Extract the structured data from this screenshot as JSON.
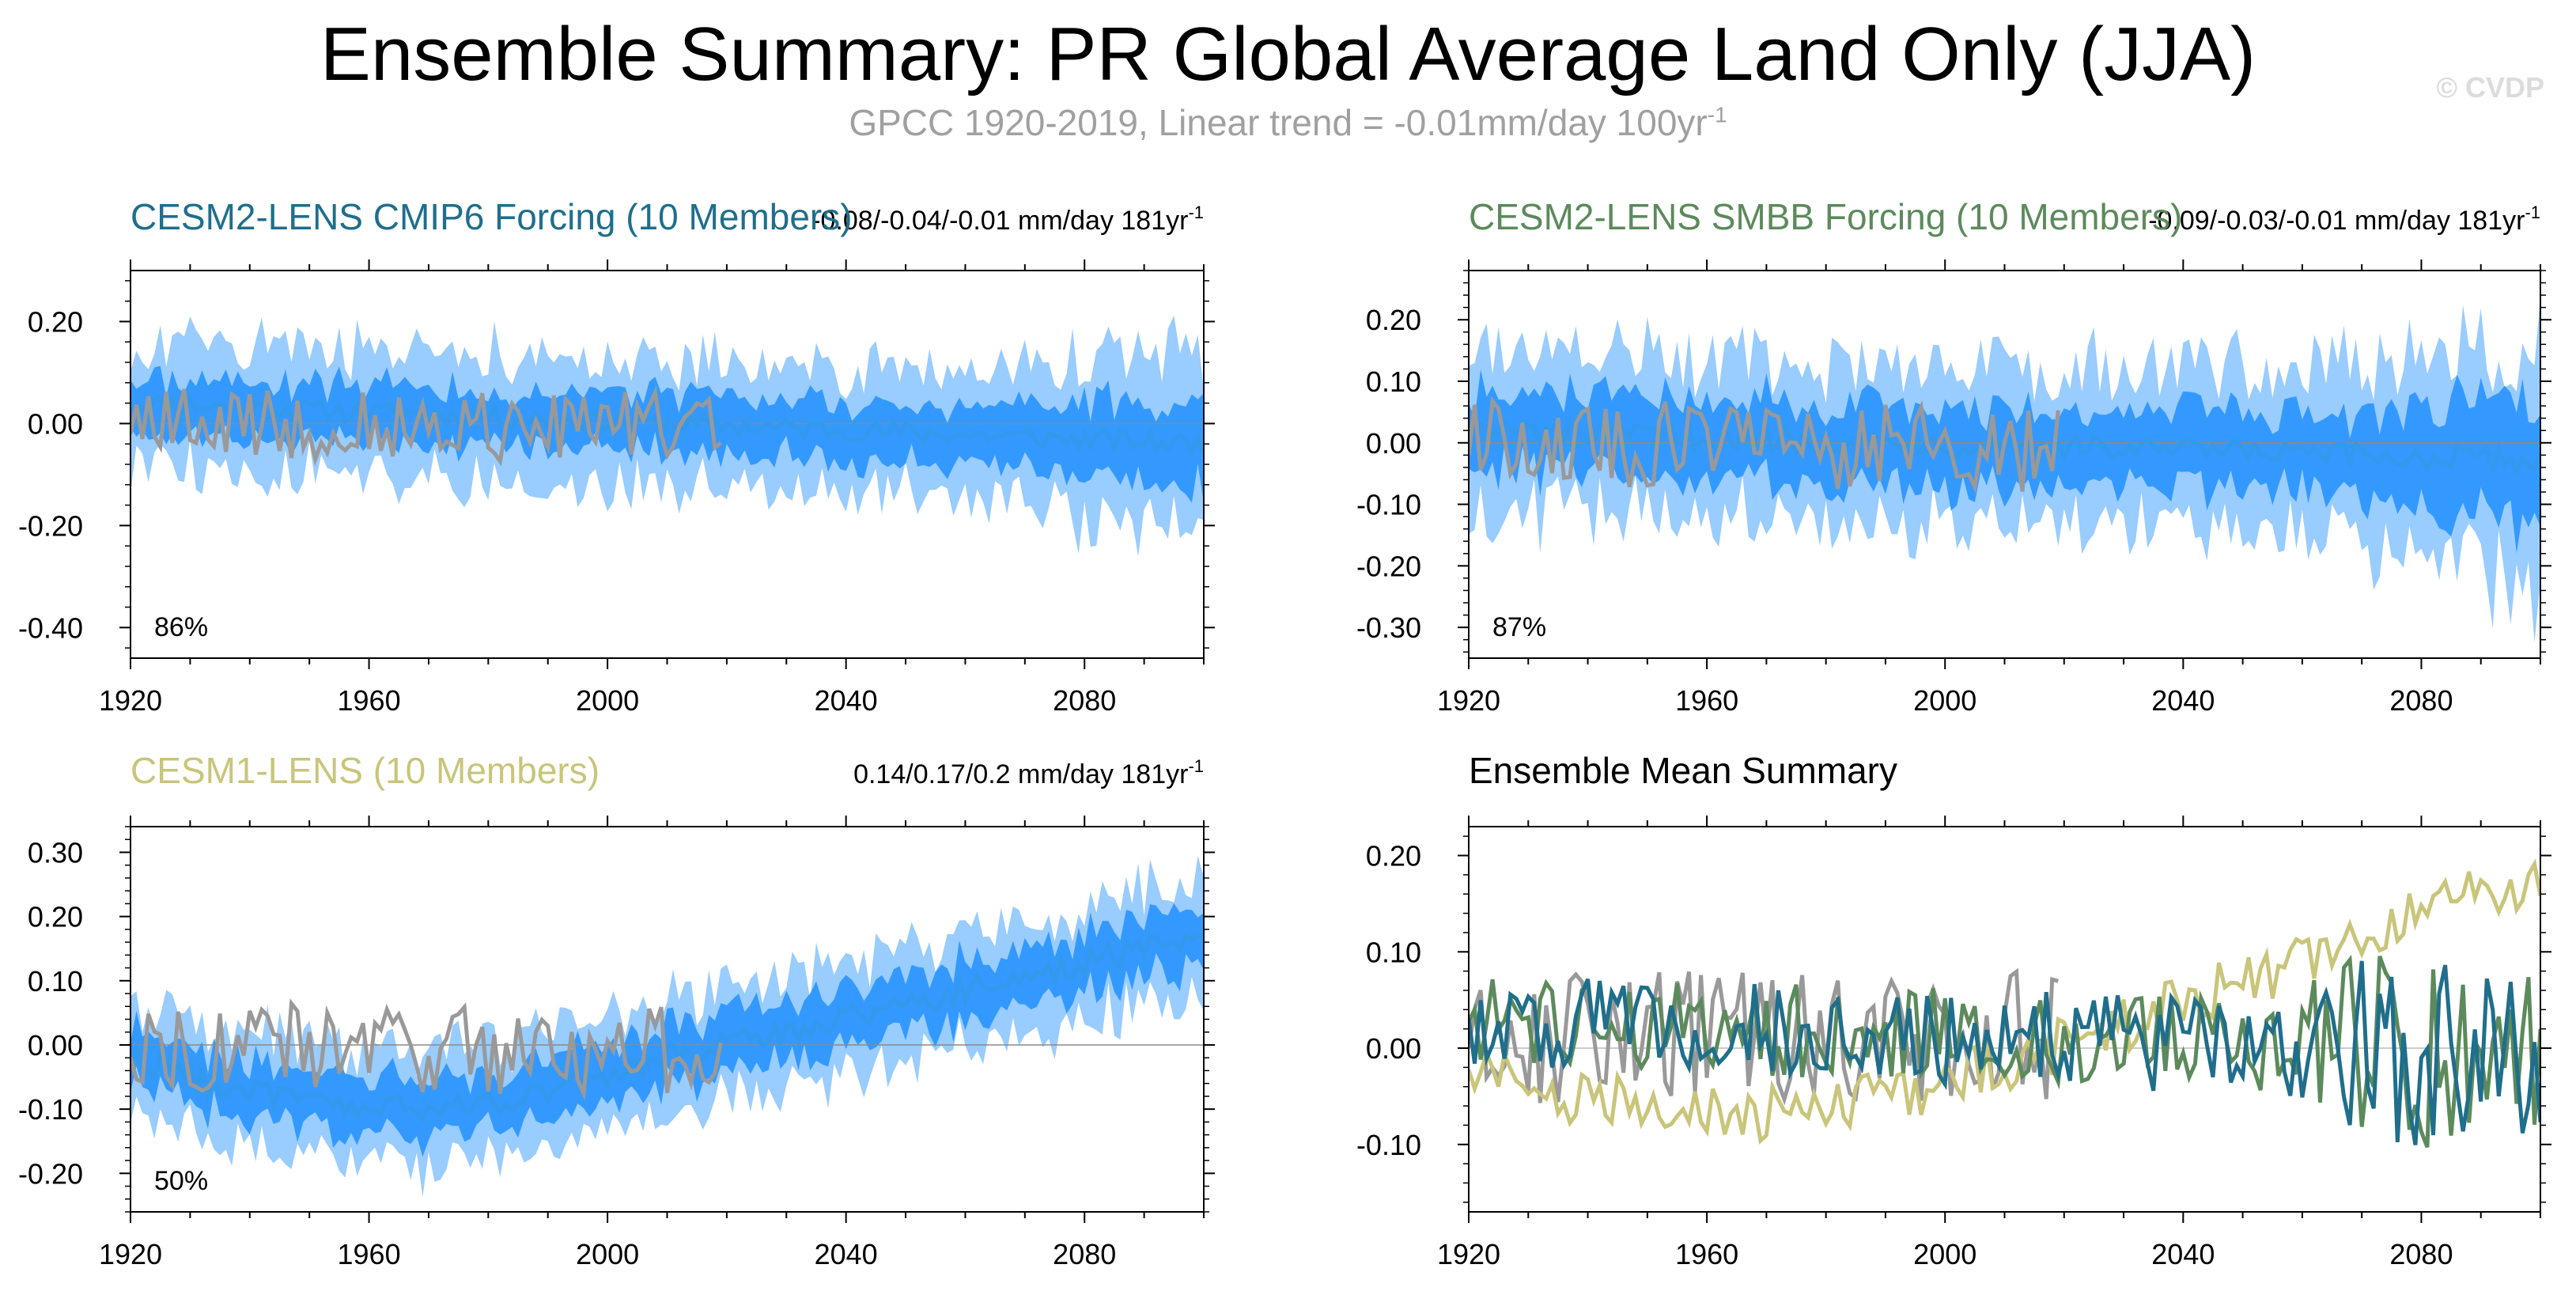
{
  "title": "Ensemble Summary: PR Global Average Land Only (JJA)",
  "subtitle": {
    "text": "GPCC 1920-2019, Linear trend = -0.01mm/day 100yr",
    "superscript": "-1"
  },
  "watermark": "© CVDP",
  "colors": {
    "cesm2_cmip6": "#1f6e8c",
    "cesm2_smbb": "#5c8a5c",
    "cesm1": "#c9c57a",
    "obs": "#999999",
    "ensemble_mean_line": "#3399ee",
    "inner_band": "#3399ff",
    "outer_band": "#99ccff"
  },
  "chart_data": [
    {
      "id": "cesm2-cmip6",
      "type": "area",
      "title": "CESM2-LENS CMIP6 Forcing (10 Members)",
      "title_color": "#1f6e8c",
      "trend_text": "-0.08/-0.04/-0.01 mm/day 181yr",
      "trend_sup": "-1",
      "percent": "86%",
      "xlim": [
        1920,
        2100
      ],
      "ylim": [
        -0.46,
        0.3
      ],
      "xticks": [
        1920,
        1960,
        2000,
        2040,
        2080
      ],
      "yticks": [
        0.2,
        0.0,
        -0.2,
        -0.4
      ],
      "ytick_labels": [
        "0.20",
        "0.00",
        "-0.20",
        "-0.40"
      ],
      "ens_trend": -0.04,
      "ens_start": 0.04,
      "spread_inner": 0.06,
      "spread_outer": 0.12,
      "obs_trend": -0.01,
      "obs_start": 0.0,
      "obs_amp": 0.07
    },
    {
      "id": "cesm2-smbb",
      "type": "area",
      "title": "CESM2-LENS SMBB Forcing (10 Members)",
      "title_color": "#5c8a5c",
      "trend_text": "-0.09/-0.03/-0.01 mm/day 181yr",
      "trend_sup": "-1",
      "percent": "87%",
      "xlim": [
        1920,
        2100
      ],
      "ylim": [
        -0.35,
        0.28
      ],
      "xticks": [
        1920,
        1960,
        2000,
        2040,
        2080
      ],
      "yticks": [
        0.2,
        0.1,
        0.0,
        -0.1,
        -0.2,
        -0.3
      ],
      "ytick_labels": [
        "0.20",
        "0.10",
        "0.00",
        "-0.10",
        "-0.20",
        "-0.30"
      ],
      "ens_trend": -0.03,
      "ens_start": 0.02,
      "spread_inner": 0.07,
      "spread_outer": 0.13,
      "obs_trend": -0.01,
      "obs_start": 0.0,
      "obs_amp": 0.07
    },
    {
      "id": "cesm1",
      "type": "area",
      "title": "CESM1-LENS (10 Members)",
      "title_color": "#c9c57a",
      "trend_text": "0.14/0.17/0.2 mm/day 181yr",
      "trend_sup": "-1",
      "percent": "50%",
      "xlim": [
        1920,
        2100
      ],
      "ylim": [
        -0.26,
        0.34
      ],
      "xticks": [
        1920,
        1960,
        2000,
        2040,
        2080
      ],
      "yticks": [
        0.3,
        0.2,
        0.1,
        0.0,
        -0.1,
        -0.2
      ],
      "ytick_labels": [
        "0.30",
        "0.20",
        "0.10",
        "0.00",
        "-0.10",
        "-0.20"
      ],
      "ens_shape": "cesm1",
      "spread_inner": 0.05,
      "spread_outer": 0.09,
      "obs_trend": -0.01,
      "obs_start": 0.0,
      "obs_amp": 0.07
    },
    {
      "id": "ensemble-mean",
      "type": "line",
      "title": "Ensemble Mean Summary",
      "title_color": "#000000",
      "xlim": [
        1920,
        2100
      ],
      "ylim": [
        -0.17,
        0.23
      ],
      "xticks": [
        1920,
        1960,
        2000,
        2040,
        2080
      ],
      "yticks": [
        0.2,
        0.1,
        0.0,
        -0.1
      ],
      "ytick_labels": [
        "0.20",
        "0.10",
        "0.00",
        "-0.10"
      ],
      "series": [
        {
          "name": "GPCC",
          "color": "#999999",
          "x_range": [
            1920,
            2019
          ],
          "amp": 0.07
        },
        {
          "name": "CESM1-LENS",
          "color": "#c9c57a",
          "x_range": [
            1920,
            2100
          ],
          "amp": 0.03
        },
        {
          "name": "CESM2-LENS SMBB",
          "color": "#5c8a5c",
          "x_range": [
            1920,
            2100
          ],
          "amp": 0.05
        },
        {
          "name": "CESM2-LENS CMIP6",
          "color": "#1f6e8c",
          "x_range": [
            1920,
            2100
          ],
          "amp": 0.05
        }
      ]
    }
  ]
}
